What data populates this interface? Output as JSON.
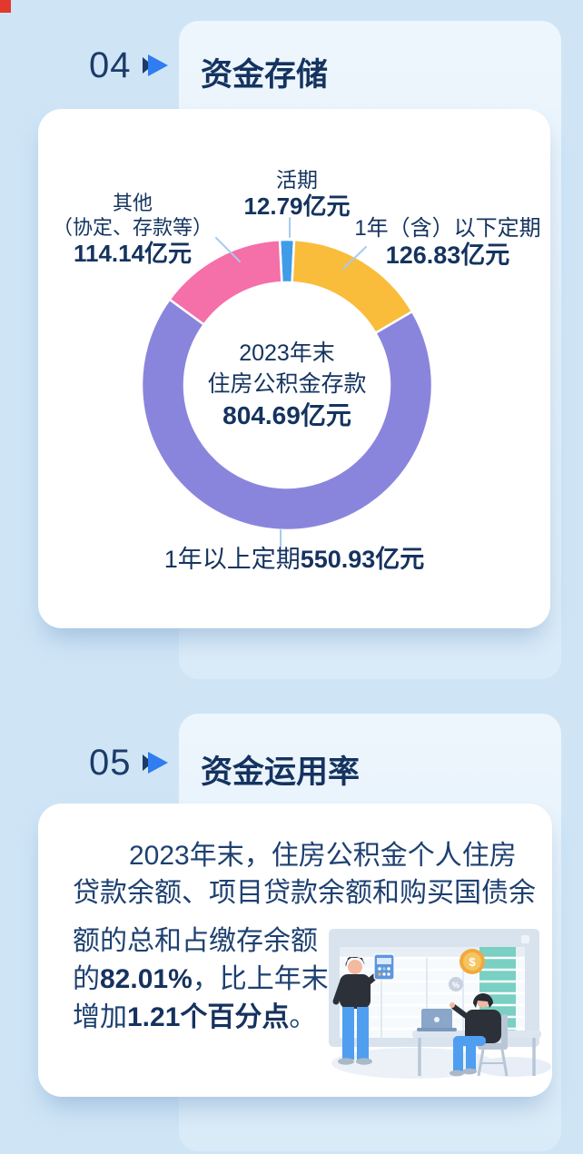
{
  "page": {
    "background_color": "#cfe5f6",
    "corner_mark_color": "#e2382e"
  },
  "header4": {
    "number": "04",
    "title": "资金存储"
  },
  "header5": {
    "number": "05",
    "title": "资金运用率"
  },
  "chart_data": {
    "type": "donut",
    "title": "2023年末住房公积金存款",
    "unit": "亿元",
    "total": 804.69,
    "clockwise": true,
    "start_angle": "first slice centered at 12 o'clock",
    "legend_position": "callout-labels",
    "slices": [
      {
        "label": "活期",
        "value": 12.79,
        "color": "#3f9ce9"
      },
      {
        "label": "1年（含）以下定期",
        "value": 126.83,
        "color": "#f9bd3b"
      },
      {
        "label": "1年以上定期",
        "value": 550.93,
        "color": "#8a85dc"
      },
      {
        "label": "其他（协定、存款等）",
        "value": 114.14,
        "color": "#f56fa9"
      }
    ],
    "center": {
      "line1": "2023年末",
      "line2": "住房公积金存款",
      "value": "804.69亿元"
    },
    "callout_top": {
      "label": "活期",
      "value": "12.79亿元"
    },
    "callout_right": {
      "label": "1年（含）以下定期",
      "value": "126.83亿元"
    },
    "callout_left": {
      "label": "其他",
      "label2": "（协定、存款等）",
      "value": "114.14亿元"
    },
    "callout_bottom_runs": [
      {
        "t": "1年以上定期"
      },
      {
        "t": "550.93亿元",
        "b": true
      }
    ]
  },
  "usage": {
    "line1": "2023年末，住房公积金个人住房",
    "line2": "贷款余额、项目贷款余额和购买国债余",
    "line3": "额的总和占缴存余额",
    "line4": [
      {
        "t": "的"
      },
      {
        "t": "82.01%",
        "b": true
      },
      {
        "t": "，比上年末"
      }
    ],
    "line5": [
      {
        "t": "增加"
      },
      {
        "t": "1.21个百分点",
        "b": true
      },
      {
        "t": "。"
      }
    ]
  },
  "illustration": {
    "coin_symbol": "$",
    "percent_symbol": "%"
  }
}
